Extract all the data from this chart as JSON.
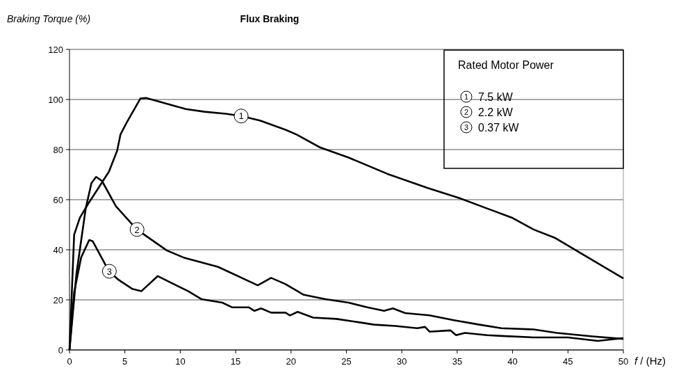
{
  "chart_data": {
    "type": "line",
    "title": "Flux Braking",
    "ylabel": "Braking Torque (%)",
    "xlabel": "f / (Hz)",
    "legend_title": "Rated Motor Power",
    "legend": "top right",
    "grid": "y",
    "marker": "none",
    "line_style": "solid",
    "xlim": [
      0,
      50
    ],
    "xticks": [
      0,
      5,
      10,
      15,
      20,
      25,
      30,
      35,
      40,
      45,
      50
    ],
    "ylim": [
      0,
      120
    ],
    "yticks": [
      0,
      20,
      40,
      60,
      80,
      100,
      120
    ],
    "annotations": [
      {
        "text": "1",
        "x": 15.5,
        "y": 93.4
      },
      {
        "text": "2",
        "x": 6.1,
        "y": 48.1
      },
      {
        "text": "3",
        "x": 3.6,
        "y": 31.4
      }
    ],
    "series": [
      {
        "name": "7.5 kW",
        "color": "#000000",
        "x": [
          0,
          0.42,
          0.94,
          1.68,
          2.5,
          3.56,
          4.3,
          4.6,
          5.14,
          6.4,
          6.9,
          8.2,
          10.5,
          12.2,
          14.1,
          15.5,
          17.2,
          19.5,
          20.5,
          22.6,
          25.2,
          28.7,
          32.3,
          35.2,
          37.7,
          40.0,
          41.9,
          43.8,
          46.1,
          50
        ],
        "values": [
          0,
          46,
          52.8,
          58.3,
          63.9,
          71.2,
          79.5,
          86,
          90.6,
          100.4,
          100.6,
          99,
          96.2,
          95.1,
          94.3,
          93.4,
          91.6,
          87.9,
          86,
          80.9,
          76.8,
          70.3,
          64.7,
          60.6,
          56.5,
          52.7,
          48.1,
          44.8,
          38.8,
          28.6
        ]
      },
      {
        "name": "2.2 kW",
        "color": "#000000",
        "x": [
          0,
          0.63,
          1.46,
          1.98,
          2.4,
          2.93,
          4.2,
          6.08,
          8.8,
          10.3,
          13.4,
          17.0,
          18.2,
          19.5,
          21.1,
          23.1,
          25.2,
          26.9,
          28.4,
          29.2,
          30.3,
          32.5,
          34.7,
          37,
          39,
          41.9,
          44,
          47.2,
          50
        ],
        "values": [
          0,
          30.5,
          56.4,
          66.6,
          69.1,
          67.5,
          57.3,
          48.1,
          39.7,
          36.9,
          33.2,
          25.8,
          28.8,
          26.3,
          22.1,
          20.3,
          18.9,
          17.0,
          15.6,
          16.6,
          14.7,
          13.8,
          11.9,
          10.1,
          8.7,
          8.2,
          6.8,
          5.4,
          4.4
        ]
      },
      {
        "name": "0.37 kW",
        "color": "#000000",
        "x": [
          0,
          0.42,
          1.05,
          1.78,
          2.1,
          3.56,
          4.4,
          5.66,
          6.5,
          7.97,
          9.64,
          10.7,
          11.9,
          13.8,
          14.7,
          16.2,
          16.7,
          17.3,
          18.2,
          19.5,
          19.9,
          20.6,
          22.0,
          24.1,
          26.2,
          27.5,
          29.4,
          31.4,
          32.1,
          32.5,
          34.4,
          34.9,
          35.7,
          37.7,
          39,
          41.9,
          45,
          47.7,
          50
        ],
        "values": [
          0,
          23,
          36.9,
          43.9,
          43.4,
          31.4,
          28.1,
          24.4,
          23.5,
          29.5,
          25.8,
          23.5,
          20.3,
          18.9,
          17.0,
          17.0,
          15.6,
          16.6,
          14.9,
          14.9,
          13.8,
          15.2,
          12.9,
          12.4,
          11.0,
          10.1,
          9.6,
          8.7,
          9.2,
          7.3,
          7.8,
          5.9,
          6.8,
          5.9,
          5.6,
          5.0,
          5.0,
          3.6,
          4.7
        ]
      }
    ]
  }
}
